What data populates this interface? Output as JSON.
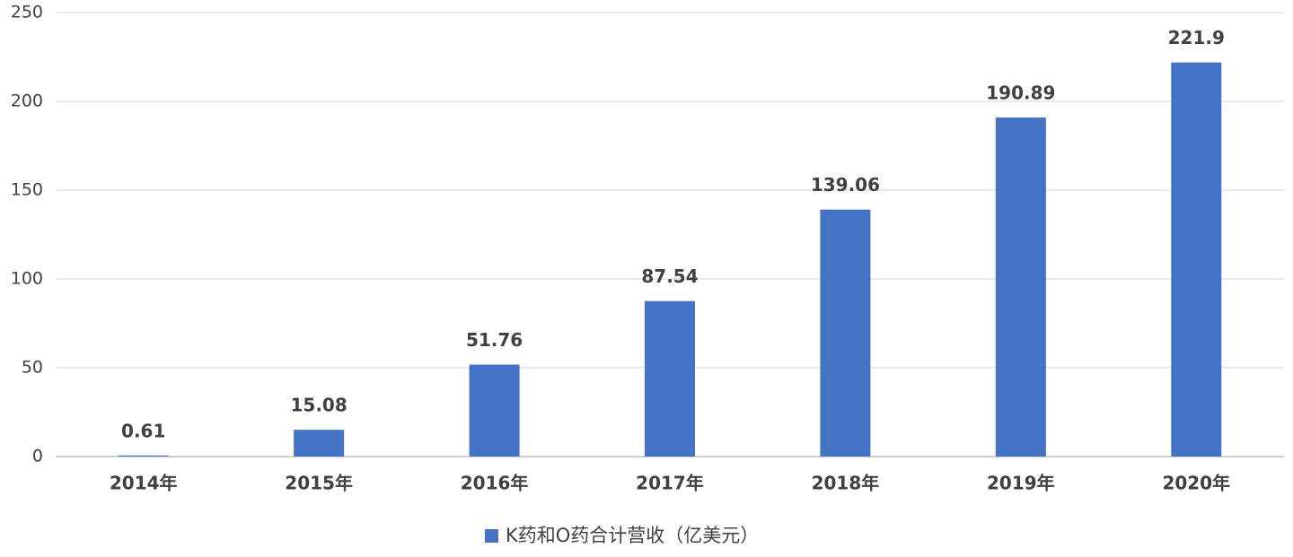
{
  "chart_data": {
    "type": "bar",
    "categories": [
      "2014年",
      "2015年",
      "2016年",
      "2017年",
      "2018年",
      "2019年",
      "2020年"
    ],
    "series": [
      {
        "name": "K药和O药合计营收（亿美元）",
        "color": "#4472c4",
        "values": [
          0.61,
          15.08,
          51.76,
          87.54,
          139.06,
          190.89,
          221.9
        ]
      }
    ],
    "ylim": [
      0,
      250
    ],
    "yticks": [
      0,
      50,
      100,
      150,
      200,
      250
    ],
    "grid": true,
    "legend": "bottom"
  }
}
